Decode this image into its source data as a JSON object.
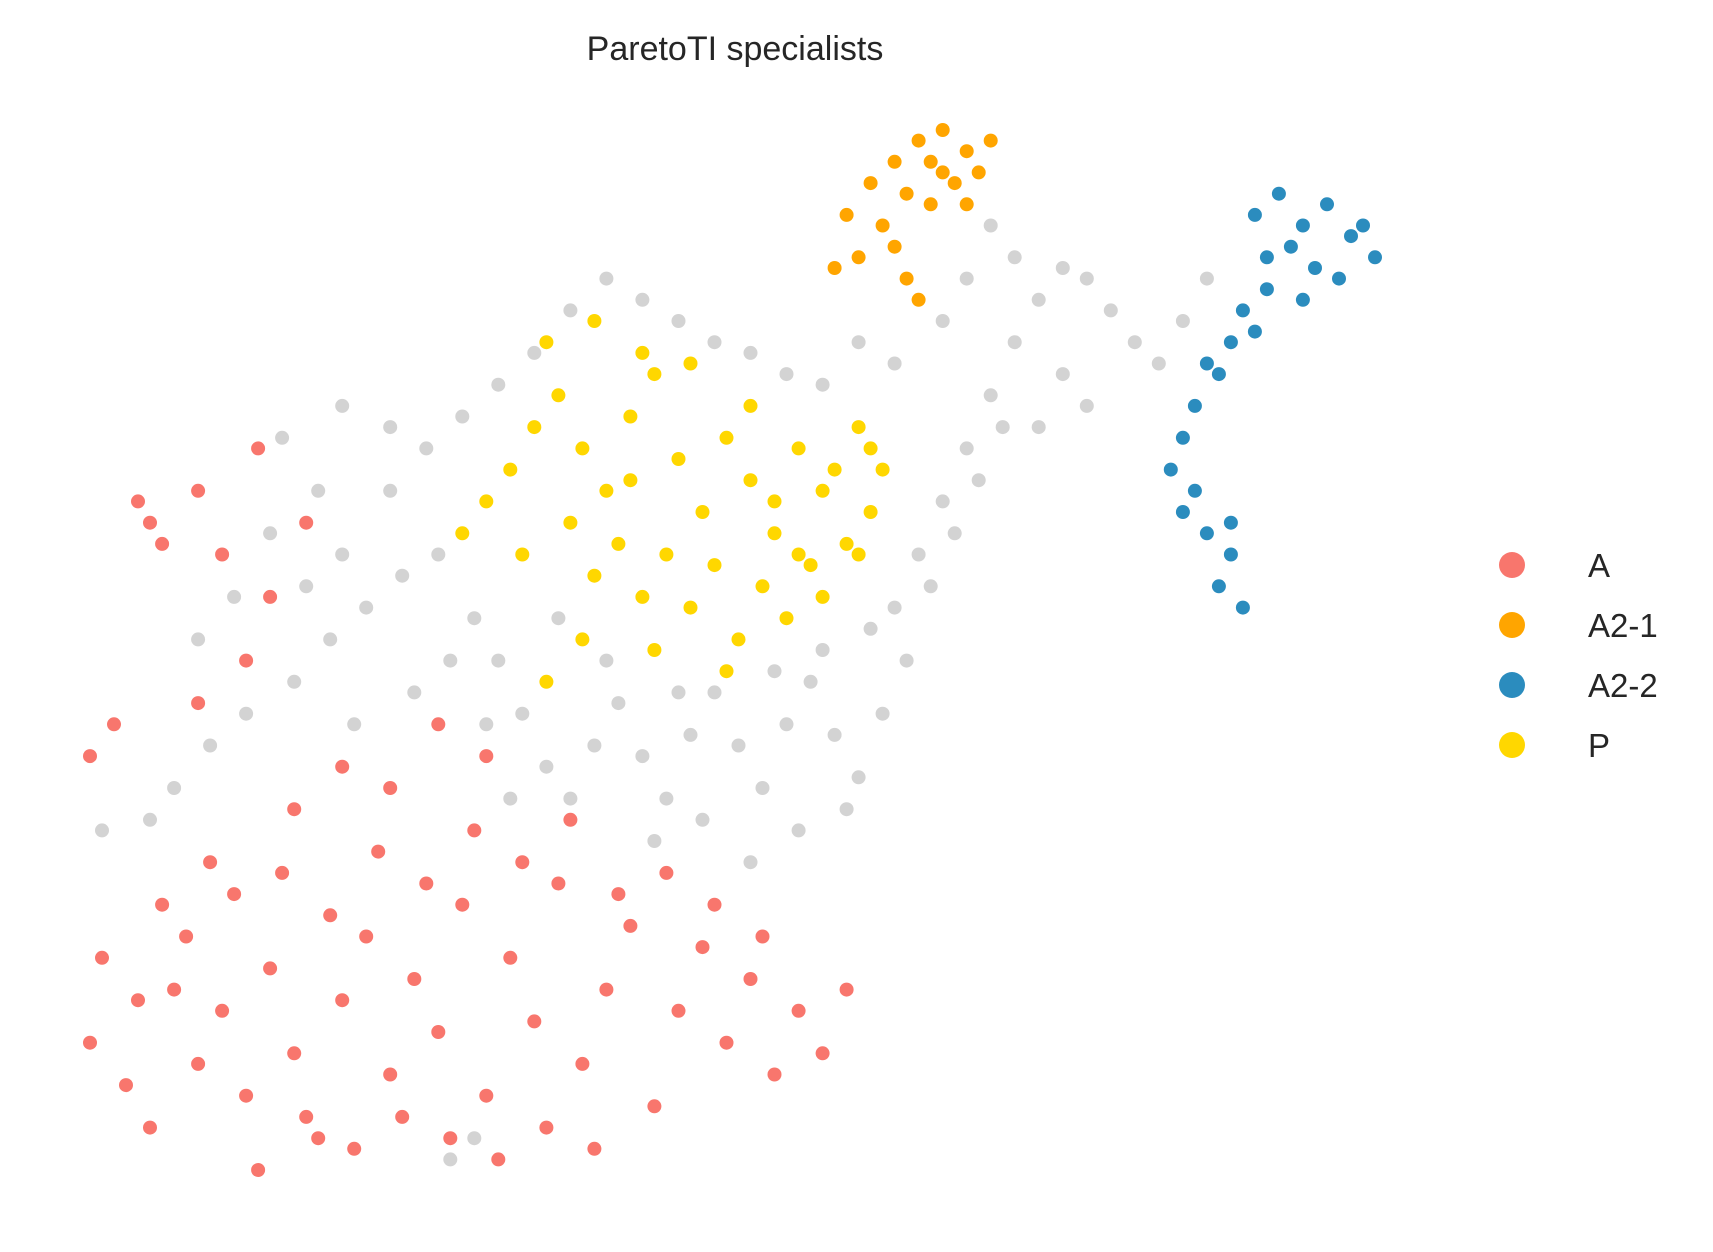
{
  "chart_data": {
    "type": "scatter",
    "title": "ParetoTI specialists",
    "xlabel": "",
    "ylabel": "",
    "axes_visible": false,
    "grid": false,
    "legend_position": "right",
    "background_color": "#d3d3d3",
    "series": [
      {
        "name": "A",
        "color": "#f8766d",
        "points": [
          [
            0.05,
            0.14
          ],
          [
            0.08,
            0.1
          ],
          [
            0.1,
            0.06
          ],
          [
            0.12,
            0.19
          ],
          [
            0.14,
            0.12
          ],
          [
            0.16,
            0.17
          ],
          [
            0.18,
            0.09
          ],
          [
            0.2,
            0.21
          ],
          [
            0.22,
            0.13
          ],
          [
            0.24,
            0.05
          ],
          [
            0.26,
            0.18
          ],
          [
            0.28,
            0.24
          ],
          [
            0.3,
            0.11
          ],
          [
            0.32,
            0.2
          ],
          [
            0.34,
            0.15
          ],
          [
            0.36,
            0.27
          ],
          [
            0.38,
            0.09
          ],
          [
            0.4,
            0.22
          ],
          [
            0.42,
            0.16
          ],
          [
            0.44,
            0.29
          ],
          [
            0.46,
            0.12
          ],
          [
            0.48,
            0.19
          ],
          [
            0.5,
            0.25
          ],
          [
            0.52,
            0.08
          ],
          [
            0.54,
            0.17
          ],
          [
            0.56,
            0.23
          ],
          [
            0.58,
            0.14
          ],
          [
            0.6,
            0.2
          ],
          [
            0.62,
            0.11
          ],
          [
            0.64,
            0.17
          ],
          [
            0.66,
            0.13
          ],
          [
            0.68,
            0.19
          ],
          [
            0.06,
            0.22
          ],
          [
            0.09,
            0.18
          ],
          [
            0.13,
            0.24
          ],
          [
            0.17,
            0.28
          ],
          [
            0.21,
            0.3
          ],
          [
            0.25,
            0.26
          ],
          [
            0.29,
            0.32
          ],
          [
            0.33,
            0.29
          ],
          [
            0.37,
            0.34
          ],
          [
            0.41,
            0.31
          ],
          [
            0.45,
            0.35
          ],
          [
            0.49,
            0.28
          ],
          [
            0.53,
            0.3
          ],
          [
            0.57,
            0.27
          ],
          [
            0.61,
            0.24
          ],
          [
            0.27,
            0.04
          ],
          [
            0.31,
            0.07
          ],
          [
            0.35,
            0.05
          ],
          [
            0.39,
            0.03
          ],
          [
            0.43,
            0.06
          ],
          [
            0.47,
            0.04
          ],
          [
            0.19,
            0.02
          ],
          [
            0.23,
            0.07
          ],
          [
            0.11,
            0.27
          ],
          [
            0.15,
            0.31
          ],
          [
            0.22,
            0.36
          ],
          [
            0.26,
            0.4
          ],
          [
            0.3,
            0.38
          ],
          [
            0.34,
            0.44
          ],
          [
            0.38,
            0.41
          ],
          [
            0.07,
            0.44
          ],
          [
            0.05,
            0.41
          ],
          [
            0.14,
            0.46
          ],
          [
            0.18,
            0.5
          ],
          [
            0.2,
            0.56
          ],
          [
            0.16,
            0.6
          ],
          [
            0.14,
            0.66
          ],
          [
            0.23,
            0.63
          ],
          [
            0.19,
            0.7
          ],
          [
            0.1,
            0.63
          ],
          [
            0.09,
            0.65
          ],
          [
            0.11,
            0.61
          ]
        ]
      },
      {
        "name": "A2-1",
        "color": "#ffa500",
        "points": [
          [
            0.68,
            0.92
          ],
          [
            0.7,
            0.95
          ],
          [
            0.72,
            0.97
          ],
          [
            0.74,
            0.99
          ],
          [
            0.76,
            1.0
          ],
          [
            0.78,
            0.98
          ],
          [
            0.77,
            0.95
          ],
          [
            0.75,
            0.93
          ],
          [
            0.73,
            0.94
          ],
          [
            0.71,
            0.91
          ],
          [
            0.69,
            0.88
          ],
          [
            0.72,
            0.89
          ],
          [
            0.79,
            0.96
          ],
          [
            0.8,
            0.99
          ],
          [
            0.75,
            0.97
          ],
          [
            0.73,
            0.86
          ],
          [
            0.74,
            0.84
          ],
          [
            0.67,
            0.87
          ],
          [
            0.78,
            0.93
          ],
          [
            0.76,
            0.96
          ]
        ]
      },
      {
        "name": "A2-2",
        "color": "#2b8cbe",
        "points": [
          [
            1.02,
            0.92
          ],
          [
            1.04,
            0.94
          ],
          [
            1.06,
            0.91
          ],
          [
            1.08,
            0.93
          ],
          [
            1.1,
            0.9
          ],
          [
            1.12,
            0.88
          ],
          [
            1.07,
            0.87
          ],
          [
            1.05,
            0.89
          ],
          [
            1.03,
            0.85
          ],
          [
            1.01,
            0.83
          ],
          [
            1.0,
            0.8
          ],
          [
            0.99,
            0.77
          ],
          [
            0.97,
            0.74
          ],
          [
            0.96,
            0.71
          ],
          [
            0.95,
            0.68
          ],
          [
            0.97,
            0.66
          ],
          [
            0.98,
            0.62
          ],
          [
            1.0,
            0.6
          ],
          [
            0.99,
            0.57
          ],
          [
            1.01,
            0.55
          ],
          [
            1.09,
            0.86
          ],
          [
            1.11,
            0.91
          ],
          [
            1.06,
            0.84
          ],
          [
            1.03,
            0.88
          ],
          [
            0.98,
            0.78
          ],
          [
            1.02,
            0.81
          ],
          [
            0.96,
            0.64
          ],
          [
            1.0,
            0.63
          ]
        ]
      },
      {
        "name": "P",
        "color": "#ffd700",
        "points": [
          [
            0.4,
            0.68
          ],
          [
            0.42,
            0.72
          ],
          [
            0.44,
            0.75
          ],
          [
            0.46,
            0.7
          ],
          [
            0.48,
            0.66
          ],
          [
            0.5,
            0.73
          ],
          [
            0.52,
            0.77
          ],
          [
            0.54,
            0.69
          ],
          [
            0.56,
            0.64
          ],
          [
            0.58,
            0.71
          ],
          [
            0.6,
            0.67
          ],
          [
            0.62,
            0.62
          ],
          [
            0.64,
            0.7
          ],
          [
            0.66,
            0.66
          ],
          [
            0.68,
            0.61
          ],
          [
            0.7,
            0.64
          ],
          [
            0.45,
            0.63
          ],
          [
            0.47,
            0.58
          ],
          [
            0.49,
            0.61
          ],
          [
            0.51,
            0.56
          ],
          [
            0.53,
            0.6
          ],
          [
            0.55,
            0.55
          ],
          [
            0.57,
            0.59
          ],
          [
            0.59,
            0.52
          ],
          [
            0.61,
            0.57
          ],
          [
            0.63,
            0.54
          ],
          [
            0.65,
            0.59
          ],
          [
            0.67,
            0.68
          ],
          [
            0.69,
            0.72
          ],
          [
            0.43,
            0.8
          ],
          [
            0.47,
            0.82
          ],
          [
            0.51,
            0.79
          ],
          [
            0.38,
            0.65
          ],
          [
            0.41,
            0.6
          ],
          [
            0.43,
            0.48
          ],
          [
            0.46,
            0.52
          ],
          [
            0.52,
            0.51
          ],
          [
            0.58,
            0.49
          ],
          [
            0.66,
            0.56
          ],
          [
            0.69,
            0.6
          ],
          [
            0.71,
            0.68
          ],
          [
            0.55,
            0.78
          ],
          [
            0.6,
            0.74
          ],
          [
            0.5,
            0.67
          ],
          [
            0.62,
            0.65
          ],
          [
            0.64,
            0.6
          ],
          [
            0.7,
            0.7
          ],
          [
            0.36,
            0.62
          ]
        ]
      },
      {
        "name": "",
        "color": "#d3d3d3",
        "points": [
          [
            0.06,
            0.34
          ],
          [
            0.1,
            0.35
          ],
          [
            0.12,
            0.38
          ],
          [
            0.15,
            0.42
          ],
          [
            0.18,
            0.45
          ],
          [
            0.22,
            0.48
          ],
          [
            0.25,
            0.52
          ],
          [
            0.28,
            0.55
          ],
          [
            0.31,
            0.58
          ],
          [
            0.34,
            0.6
          ],
          [
            0.37,
            0.54
          ],
          [
            0.39,
            0.5
          ],
          [
            0.41,
            0.45
          ],
          [
            0.43,
            0.4
          ],
          [
            0.45,
            0.37
          ],
          [
            0.47,
            0.42
          ],
          [
            0.49,
            0.46
          ],
          [
            0.51,
            0.41
          ],
          [
            0.53,
            0.37
          ],
          [
            0.55,
            0.43
          ],
          [
            0.57,
            0.47
          ],
          [
            0.59,
            0.42
          ],
          [
            0.61,
            0.38
          ],
          [
            0.63,
            0.44
          ],
          [
            0.65,
            0.48
          ],
          [
            0.67,
            0.43
          ],
          [
            0.69,
            0.39
          ],
          [
            0.71,
            0.45
          ],
          [
            0.73,
            0.5
          ],
          [
            0.72,
            0.55
          ],
          [
            0.74,
            0.6
          ],
          [
            0.76,
            0.65
          ],
          [
            0.78,
            0.7
          ],
          [
            0.8,
            0.75
          ],
          [
            0.82,
            0.8
          ],
          [
            0.84,
            0.84
          ],
          [
            0.86,
            0.87
          ],
          [
            0.88,
            0.86
          ],
          [
            0.9,
            0.83
          ],
          [
            0.92,
            0.8
          ],
          [
            0.94,
            0.78
          ],
          [
            0.96,
            0.82
          ],
          [
            0.98,
            0.86
          ],
          [
            0.86,
            0.77
          ],
          [
            0.88,
            0.74
          ],
          [
            0.84,
            0.72
          ],
          [
            0.82,
            0.88
          ],
          [
            0.8,
            0.91
          ],
          [
            0.78,
            0.86
          ],
          [
            0.76,
            0.82
          ],
          [
            0.3,
            0.66
          ],
          [
            0.33,
            0.7
          ],
          [
            0.36,
            0.73
          ],
          [
            0.39,
            0.76
          ],
          [
            0.42,
            0.79
          ],
          [
            0.45,
            0.83
          ],
          [
            0.48,
            0.86
          ],
          [
            0.51,
            0.84
          ],
          [
            0.54,
            0.82
          ],
          [
            0.57,
            0.8
          ],
          [
            0.6,
            0.79
          ],
          [
            0.63,
            0.77
          ],
          [
            0.66,
            0.76
          ],
          [
            0.69,
            0.8
          ],
          [
            0.72,
            0.78
          ],
          [
            0.26,
            0.6
          ],
          [
            0.23,
            0.57
          ],
          [
            0.2,
            0.62
          ],
          [
            0.17,
            0.56
          ],
          [
            0.14,
            0.52
          ],
          [
            0.27,
            0.44
          ],
          [
            0.32,
            0.47
          ],
          [
            0.35,
            0.5
          ],
          [
            0.38,
            0.44
          ],
          [
            0.4,
            0.37
          ],
          [
            0.52,
            0.33
          ],
          [
            0.56,
            0.35
          ],
          [
            0.6,
            0.31
          ],
          [
            0.64,
            0.34
          ],
          [
            0.68,
            0.36
          ],
          [
            0.24,
            0.66
          ],
          [
            0.21,
            0.71
          ],
          [
            0.26,
            0.74
          ],
          [
            0.3,
            0.72
          ],
          [
            0.44,
            0.54
          ],
          [
            0.48,
            0.5
          ],
          [
            0.54,
            0.47
          ],
          [
            0.62,
            0.49
          ],
          [
            0.66,
            0.51
          ],
          [
            0.7,
            0.53
          ],
          [
            0.75,
            0.57
          ],
          [
            0.77,
            0.62
          ],
          [
            0.79,
            0.67
          ],
          [
            0.81,
            0.72
          ],
          [
            0.35,
            0.03
          ],
          [
            0.37,
            0.05
          ]
        ]
      }
    ],
    "legend": [
      "A",
      "A2-1",
      "A2-2",
      "P"
    ]
  }
}
